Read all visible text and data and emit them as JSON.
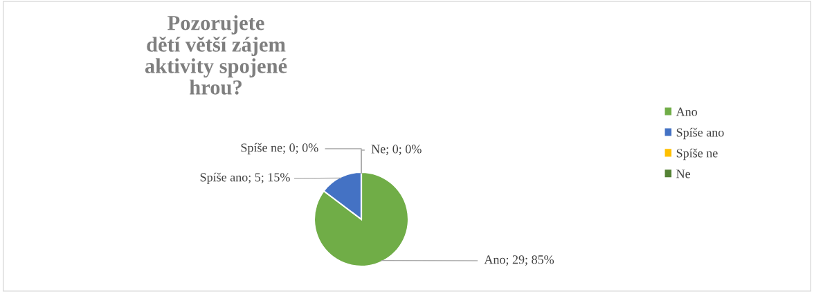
{
  "chart_data": {
    "type": "pie",
    "title": "Pozorujete\ndětí větší zájem\naktivity spojené\nhrou?",
    "categories": [
      "Ano",
      "Spíše ano",
      "Spíše ne",
      "Ne"
    ],
    "values": [
      29,
      5,
      0,
      0
    ],
    "colors": [
      "#70ad47",
      "#4472c4",
      "#ffc000",
      "#548235"
    ],
    "value_labels": [
      "Ano; 29; 85%",
      "Spíše ano; 5; 15%",
      "Spíše ne; 0; 0%",
      "Ne; 0; 0%"
    ],
    "legend": "right"
  }
}
